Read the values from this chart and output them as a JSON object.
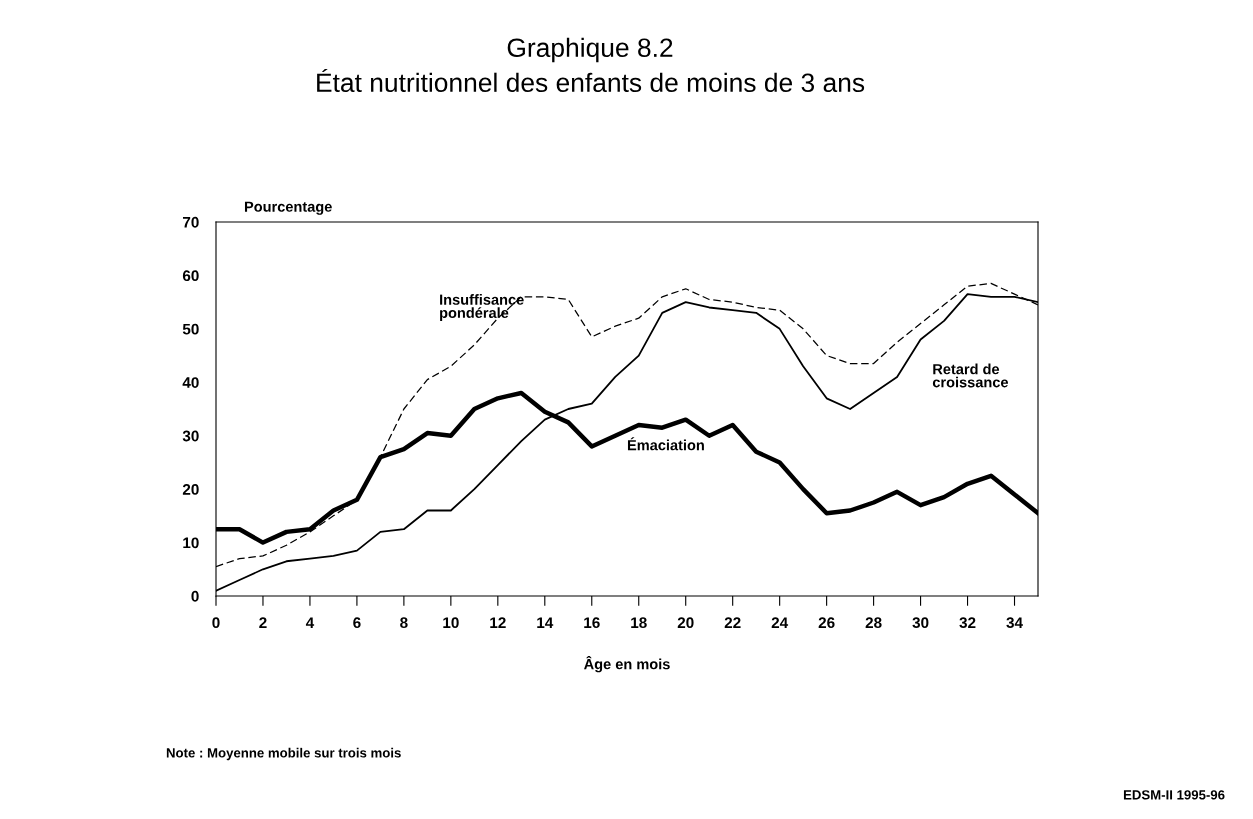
{
  "chart_data": {
    "type": "line",
    "title": "Graphique 8.2",
    "subtitle": "État nutritionnel des enfants de moins de 3 ans",
    "xlabel": "Âge en mois",
    "ylabel": "Pourcentage",
    "x": [
      0,
      1,
      2,
      3,
      4,
      5,
      6,
      7,
      8,
      9,
      10,
      11,
      12,
      13,
      14,
      15,
      16,
      17,
      18,
      19,
      20,
      21,
      22,
      23,
      24,
      25,
      26,
      27,
      28,
      29,
      30,
      31,
      32,
      33,
      34,
      35
    ],
    "series": [
      {
        "name": "Émaciation",
        "color": "#000000",
        "line_style": "solid",
        "values": [
          12.5,
          12.5,
          10,
          12,
          12.5,
          16,
          18,
          26,
          27.5,
          30.5,
          30,
          35,
          37,
          38,
          34.5,
          32.5,
          28,
          30,
          32,
          31.5,
          33,
          30,
          32,
          27,
          25,
          20,
          15.5,
          16,
          17.5,
          19.5,
          17,
          18.5,
          21,
          22.5,
          19,
          15.5
        ]
      },
      {
        "name": "Retard de croissance",
        "color": "#000000",
        "line_style": "solid",
        "values": [
          1,
          3,
          5,
          6.5,
          7,
          7.5,
          8.5,
          12,
          12.5,
          16,
          16,
          20,
          24.5,
          29,
          33,
          35,
          36,
          41,
          45,
          53,
          55,
          54,
          53.5,
          53,
          50,
          43,
          37,
          35,
          38,
          41,
          48,
          51.5,
          56.5,
          56,
          56,
          55
        ]
      },
      {
        "name": "Insuffisance pondérale",
        "color": "#000000",
        "line_style": "dashed",
        "values": [
          5.5,
          7,
          7.5,
          9.5,
          12,
          15,
          18,
          26,
          35,
          40.5,
          43,
          47,
          52,
          56,
          56,
          55.5,
          48.5,
          50.5,
          52,
          56,
          57.5,
          55.5,
          55,
          54,
          53.5,
          50,
          45,
          43.5,
          43.5,
          47.5,
          51,
          54.5,
          58,
          58.5,
          56.5,
          54.5
        ]
      }
    ],
    "annotations": [
      "Note : Moyenne mobile sur trois mois",
      "EDSM-II 1995-96"
    ],
    "xlim": [
      0,
      35
    ],
    "xticks": [
      0,
      2,
      4,
      6,
      8,
      10,
      12,
      14,
      16,
      18,
      20,
      22,
      24,
      26,
      28,
      30,
      32,
      34
    ],
    "ylim": [
      0,
      70
    ],
    "yticks": [
      0,
      10,
      20,
      30,
      40,
      50,
      60,
      70
    ],
    "grid": false,
    "legend": false
  }
}
